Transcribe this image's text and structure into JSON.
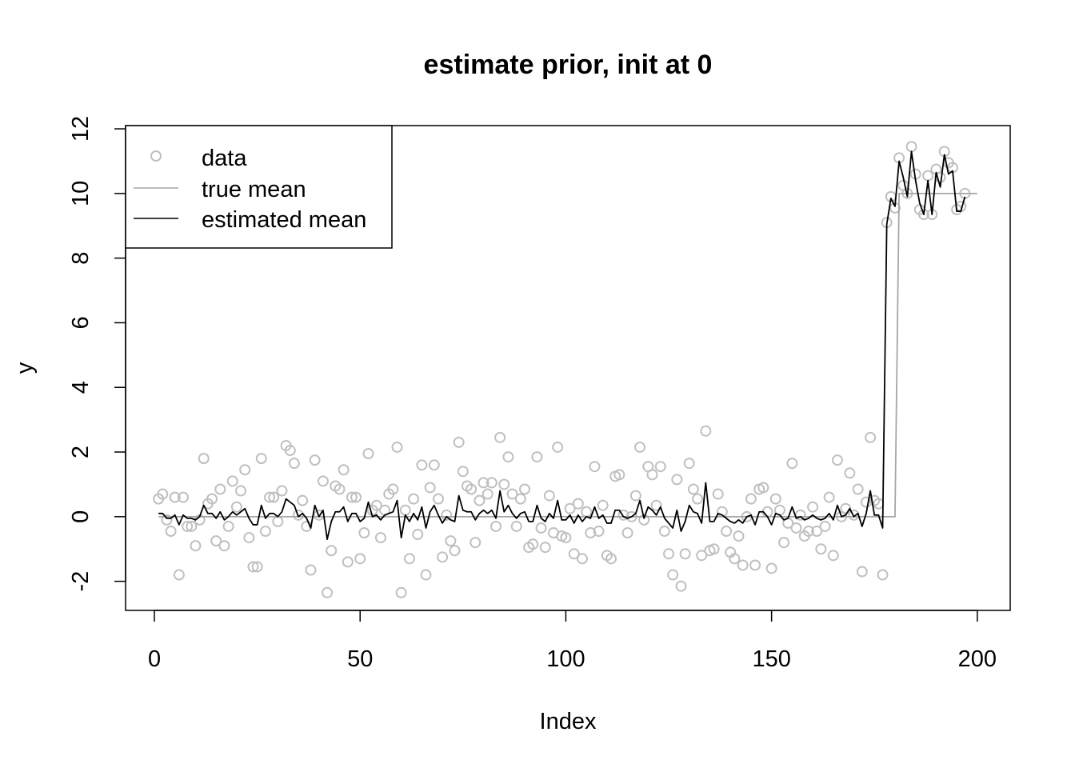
{
  "chart_data": {
    "type": "scatter",
    "title": "estimate prior, init at 0",
    "xlabel": "Index",
    "ylabel": "y",
    "xlim": [
      -7,
      208
    ],
    "ylim": [
      -2.9,
      12.1
    ],
    "x_ticks": [
      "0",
      "50",
      "100",
      "150",
      "200"
    ],
    "x_tick_values": [
      0,
      50,
      100,
      150,
      200
    ],
    "y_ticks": [
      "-2",
      "0",
      "2",
      "4",
      "6",
      "8",
      "10",
      "12"
    ],
    "y_tick_values": [
      -2,
      0,
      2,
      4,
      6,
      8,
      10,
      12
    ],
    "grid": false,
    "legend_position": "top-left",
    "colors": {
      "data": "#c0c0c0",
      "true_mean": "#a6a6a6",
      "estimated_mean": "#000000"
    },
    "series": [
      {
        "name": "data",
        "kind": "points",
        "values": [
          0.55,
          0.7,
          -0.1,
          -0.45,
          0.6,
          -1.8,
          0.6,
          -0.3,
          -0.3,
          -0.9,
          -0.1,
          1.8,
          0.4,
          0.55,
          -0.75,
          0.85,
          -0.9,
          -0.3,
          1.1,
          0.3,
          0.8,
          1.45,
          -0.65,
          -1.55,
          -1.55,
          1.8,
          -0.45,
          0.6,
          0.6,
          -0.15,
          0.8,
          2.2,
          2.05,
          1.65,
          0.05,
          0.5,
          -0.3,
          -1.65,
          1.75,
          0.05,
          1.1,
          -2.35,
          -1.05,
          0.95,
          0.85,
          1.45,
          -1.4,
          0.6,
          0.6,
          -1.3,
          -0.5,
          1.95,
          0.2,
          0.35,
          -0.65,
          0.2,
          0.7,
          0.85,
          2.15,
          -2.35,
          0.2,
          -1.3,
          0.55,
          -0.55,
          1.6,
          -1.8,
          0.9,
          1.6,
          0.55,
          -1.25,
          0.05,
          -0.75,
          -1.05,
          2.3,
          1.4,
          0.95,
          0.85,
          -0.8,
          0.5,
          1.05,
          0.7,
          1.05,
          -0.3,
          2.45,
          1.0,
          1.85,
          0.7,
          -0.3,
          0.55,
          0.85,
          -0.95,
          -0.85,
          1.85,
          -0.35,
          -0.95,
          0.65,
          -0.5,
          2.15,
          -0.6,
          -0.65,
          0.25,
          -1.15,
          0.4,
          -1.3,
          0.15,
          -0.5,
          1.55,
          -0.45,
          0.35,
          -1.2,
          -1.3,
          1.25,
          1.3,
          0.05,
          -0.5,
          0.0,
          0.65,
          2.15,
          -0.1,
          1.55,
          1.3,
          0.35,
          1.55,
          -0.45,
          -1.15,
          -1.8,
          1.15,
          -2.15,
          -1.15,
          1.65,
          0.85,
          0.55,
          -1.2,
          2.65,
          -1.05,
          -1.0,
          0.7,
          0.15,
          -0.45,
          -1.1,
          -1.3,
          -0.6,
          -1.5,
          0.0,
          0.55,
          -1.5,
          0.85,
          0.9,
          0.15,
          -1.6,
          0.55,
          0.2,
          -0.8,
          -0.2,
          1.65,
          -0.35,
          0.05,
          -0.6,
          -0.45,
          0.3,
          -0.45,
          -1.0,
          -0.3,
          0.6,
          -1.2,
          1.75,
          0.0,
          0.25,
          1.35,
          0.05,
          0.85,
          -1.7,
          0.45,
          2.45,
          0.5,
          0.4,
          -1.8,
          9.1,
          9.9,
          9.55,
          11.1,
          10.25,
          10.0,
          11.45,
          10.6,
          9.5,
          9.35,
          10.55,
          9.35,
          10.75,
          10.5,
          11.3,
          10.95,
          10.8,
          9.5,
          9.6,
          10.0
        ],
        "x_start": 1
      },
      {
        "name": "true mean",
        "kind": "line",
        "x": [
          1,
          180,
          181,
          200
        ],
        "values": [
          0,
          0,
          10,
          10
        ]
      },
      {
        "name": "estimated mean",
        "kind": "line",
        "x_start": 1,
        "values": [
          0.1,
          0.1,
          -0.05,
          -0.05,
          0.05,
          -0.25,
          0.05,
          -0.05,
          -0.05,
          -0.1,
          0.0,
          0.35,
          0.1,
          0.1,
          -0.05,
          0.15,
          -0.1,
          0.0,
          0.15,
          0.05,
          0.15,
          0.25,
          -0.05,
          -0.25,
          -0.25,
          0.35,
          -0.05,
          0.1,
          0.1,
          0.0,
          0.15,
          0.55,
          0.45,
          0.35,
          0.0,
          0.1,
          -0.05,
          -0.35,
          0.35,
          0.0,
          0.2,
          -0.7,
          -0.15,
          0.15,
          0.15,
          0.3,
          -0.15,
          0.1,
          0.1,
          -0.15,
          -0.05,
          0.45,
          0.0,
          0.05,
          -0.1,
          0.05,
          0.1,
          0.15,
          0.5,
          -0.65,
          0.05,
          -0.15,
          0.1,
          -0.1,
          0.3,
          -0.35,
          0.15,
          0.35,
          0.05,
          -0.2,
          0.0,
          -0.1,
          -0.15,
          0.65,
          0.2,
          0.15,
          0.15,
          -0.1,
          0.1,
          0.2,
          0.1,
          0.2,
          -0.05,
          0.8,
          0.15,
          0.35,
          0.1,
          -0.05,
          0.1,
          0.15,
          -0.15,
          -0.15,
          0.35,
          -0.05,
          -0.15,
          0.1,
          -0.05,
          0.5,
          -0.1,
          -0.1,
          0.05,
          -0.2,
          0.05,
          -0.15,
          0.0,
          -0.05,
          0.3,
          -0.05,
          0.05,
          -0.2,
          -0.2,
          0.2,
          0.2,
          0.0,
          -0.05,
          0.0,
          0.1,
          0.5,
          -0.05,
          0.3,
          0.2,
          0.05,
          0.3,
          -0.05,
          -0.2,
          -0.35,
          0.2,
          -0.45,
          -0.15,
          0.35,
          0.15,
          0.1,
          -0.2,
          1.05,
          -0.15,
          -0.15,
          0.1,
          0.05,
          -0.05,
          -0.15,
          -0.2,
          -0.1,
          -0.2,
          0.0,
          0.05,
          -0.25,
          0.15,
          0.15,
          0.0,
          -0.25,
          0.1,
          0.05,
          -0.1,
          -0.05,
          0.3,
          -0.05,
          0.0,
          -0.1,
          -0.05,
          0.05,
          -0.05,
          -0.1,
          -0.05,
          0.1,
          -0.1,
          0.35,
          0.0,
          0.05,
          0.25,
          0.0,
          0.1,
          -0.3,
          0.1,
          0.8,
          0.05,
          0.05,
          -0.35,
          9.05,
          9.85,
          9.6,
          11.0,
          10.5,
          9.9,
          11.3,
          10.4,
          9.7,
          9.35,
          10.4,
          9.35,
          10.65,
          10.2,
          11.2,
          10.6,
          10.7,
          9.45,
          9.45,
          9.9
        ]
      }
    ],
    "legend": {
      "entries": [
        "data",
        "true mean",
        "estimated mean"
      ]
    }
  }
}
